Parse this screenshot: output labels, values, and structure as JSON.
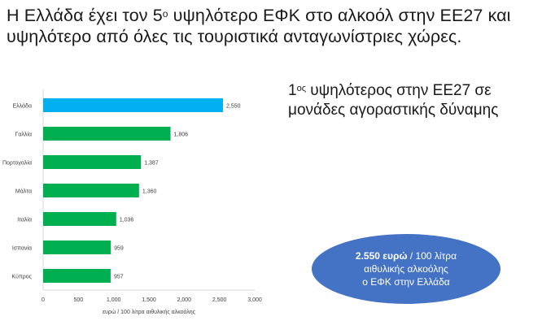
{
  "headline": {
    "part1": "Η Ελλάδα έχει τον 5",
    "sup": "ο",
    "part2": " υψηλότερο ΕΦΚ στο αλκοόλ στην ΕΕ27 και υψηλότερο από όλες τις τουριστικά ανταγωνίστριες χώρες."
  },
  "side_note": {
    "num": "1",
    "sup": "ος",
    "text": " υψηλότερος στην ΕΕ27 σε μονάδες αγοραστικής δύναμης"
  },
  "bubble": {
    "bold": "2.550 ευρώ",
    "rest": " / 100 λίτρα",
    "line2": "αιθυλικής αλκοόλης",
    "line3": "ο ΕΦΚ στην Ελλάδα"
  },
  "colors": {
    "highlight": "#00b0f0",
    "bar": "#00b050",
    "axis": "#d9d9d9",
    "bubble": "#4472c4"
  },
  "chart_data": {
    "type": "bar",
    "orientation": "horizontal",
    "categories": [
      "Ελλάδα",
      "Γαλλία",
      "Πορτογαλία",
      "Μάλτα",
      "Ιταλία",
      "Ισπανία",
      "Κύπρος"
    ],
    "values": [
      2550,
      1806,
      1387,
      1360,
      1036,
      959,
      957
    ],
    "value_labels": [
      "2,550",
      "1,806",
      "1,387",
      "1,360",
      "1,036",
      "959",
      "957"
    ],
    "highlight_index": 0,
    "xlabel": "ευρώ / 100 λίτρα αιθυλικής αλκοόλης",
    "xlim": [
      0,
      3000
    ],
    "xticks": [
      0,
      500,
      1000,
      1500,
      2000,
      2500,
      3000
    ],
    "xtick_labels": [
      "0",
      "500",
      "1,000",
      "1,500",
      "2,000",
      "2,500",
      "3,000"
    ],
    "grid": false
  }
}
